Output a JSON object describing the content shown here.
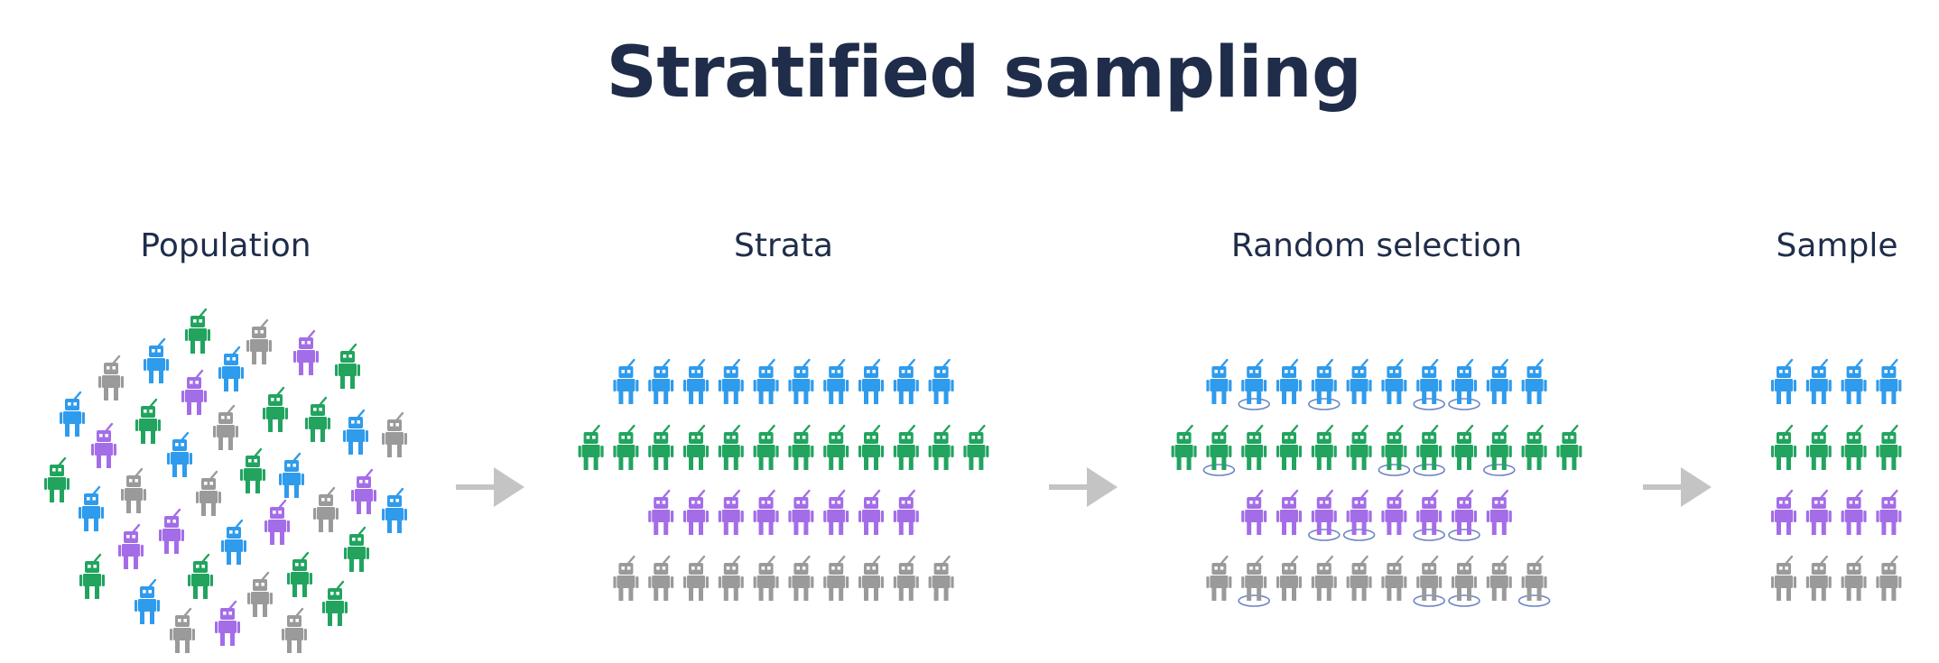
{
  "title": "Stratified sampling",
  "stages": {
    "population": "Population",
    "strata": "Strata",
    "random_selection": "Random selection",
    "sample": "Sample"
  },
  "colors": {
    "blue": "#2f9bec",
    "green": "#22a45f",
    "purple": "#a46de8",
    "gray": "#9a9a9a",
    "arrow": "#c4c4c4",
    "selection_ring": "#6b84c4",
    "text": "#1f2d4a"
  },
  "icon": "robot-icon",
  "strata": [
    {
      "name": "blue",
      "count": 10
    },
    {
      "name": "green",
      "count": 12
    },
    {
      "name": "purple",
      "count": 8
    },
    {
      "name": "gray",
      "count": 10
    }
  ],
  "selected": {
    "blue": [
      2,
      4,
      7,
      8
    ],
    "green": [
      2,
      7,
      8,
      10
    ],
    "purple": [
      3,
      4,
      6,
      7
    ],
    "gray": [
      2,
      7,
      8,
      10
    ]
  }
}
